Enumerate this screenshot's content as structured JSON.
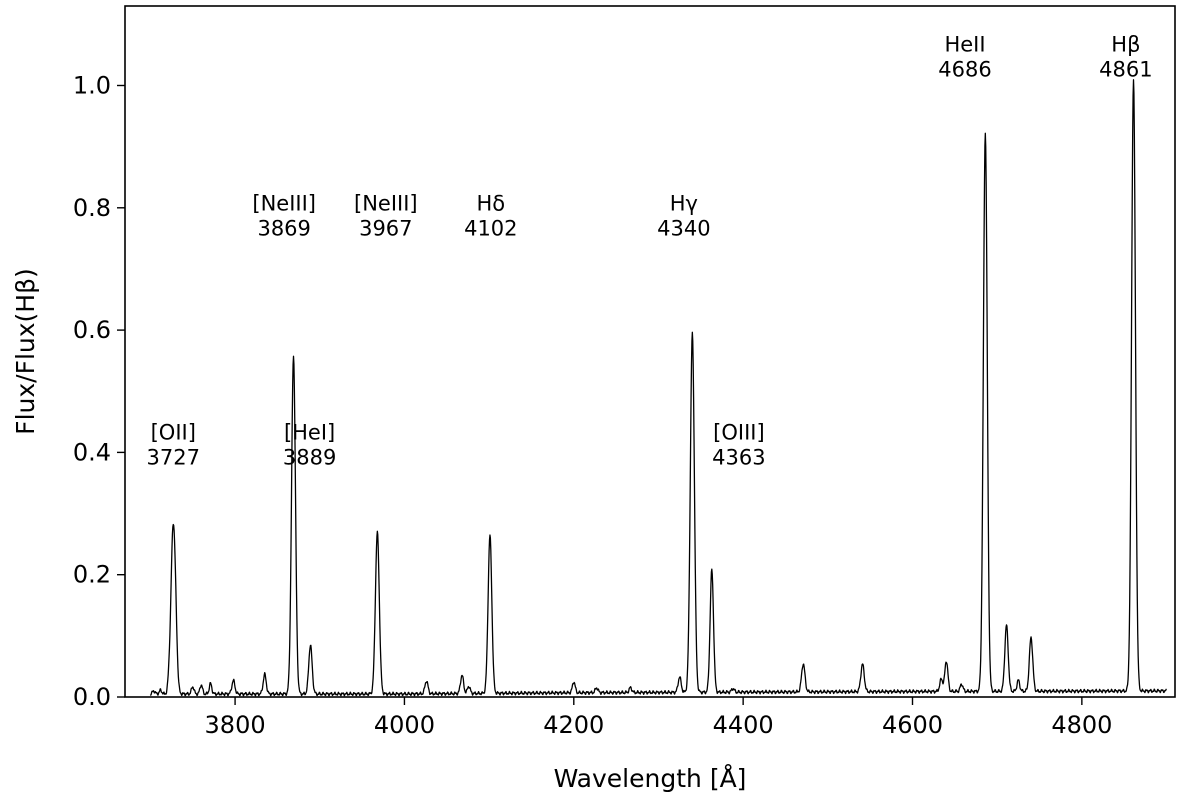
{
  "chart_data": {
    "type": "line",
    "xlabel": "Wavelength [Å]",
    "ylabel": "Flux/Flux(Hβ)",
    "xlim": [
      3670,
      4910
    ],
    "ylim": [
      0,
      1.13
    ],
    "xticks": [
      3800,
      4000,
      4200,
      4400,
      4600,
      4800
    ],
    "xtick_labels": [
      "3800",
      "4000",
      "4200",
      "4400",
      "4600",
      "4800"
    ],
    "yticks": [
      0,
      0.2,
      0.4,
      0.6,
      0.8,
      1.0
    ],
    "ytick_labels": [
      "0.0",
      "0.2",
      "0.4",
      "0.6",
      "0.8",
      "1.0"
    ],
    "line_color": "#000000",
    "grid": false,
    "legend": "none",
    "continuum": [
      [
        3700,
        0.005
      ],
      [
        4000,
        0.005
      ],
      [
        4200,
        0.007
      ],
      [
        4400,
        0.008
      ],
      [
        4600,
        0.009
      ],
      [
        4900,
        0.01
      ]
    ],
    "peaks": [
      {
        "x": 3704,
        "y": 0.005,
        "w": 1.5
      },
      {
        "x": 3712,
        "y": 0.006,
        "w": 1.5
      },
      {
        "x": 3722,
        "y": 0.02,
        "w": 1.5
      },
      {
        "x": 3726,
        "y": 0.2,
        "w": 2.2
      },
      {
        "x": 3729,
        "y": 0.15,
        "w": 2.2
      },
      {
        "x": 3750,
        "y": 0.012,
        "w": 1.5
      },
      {
        "x": 3760,
        "y": 0.015,
        "w": 1.5
      },
      {
        "x": 3771,
        "y": 0.017,
        "w": 1.5
      },
      {
        "x": 3798,
        "y": 0.022,
        "w": 1.8
      },
      {
        "x": 3835,
        "y": 0.032,
        "w": 1.8
      },
      {
        "x": 3869,
        "y": 0.553,
        "w": 2.3
      },
      {
        "x": 3889,
        "y": 0.08,
        "w": 2.0
      },
      {
        "x": 3968,
        "y": 0.264,
        "w": 2.3
      },
      {
        "x": 4026,
        "y": 0.021,
        "w": 1.8
      },
      {
        "x": 4068,
        "y": 0.03,
        "w": 1.8
      },
      {
        "x": 4076,
        "y": 0.012,
        "w": 1.6
      },
      {
        "x": 4101,
        "y": 0.258,
        "w": 2.2
      },
      {
        "x": 4200,
        "y": 0.018,
        "w": 1.6
      },
      {
        "x": 4227,
        "y": 0.008,
        "w": 1.6
      },
      {
        "x": 4267,
        "y": 0.008,
        "w": 1.6
      },
      {
        "x": 4325,
        "y": 0.025,
        "w": 1.8
      },
      {
        "x": 4340,
        "y": 0.586,
        "w": 2.4
      },
      {
        "x": 4363,
        "y": 0.2,
        "w": 2.0
      },
      {
        "x": 4388,
        "y": 0.006,
        "w": 1.6
      },
      {
        "x": 4471,
        "y": 0.046,
        "w": 2.0
      },
      {
        "x": 4541,
        "y": 0.045,
        "w": 2.0
      },
      {
        "x": 4634,
        "y": 0.02,
        "w": 1.8
      },
      {
        "x": 4640,
        "y": 0.05,
        "w": 1.8
      },
      {
        "x": 4658,
        "y": 0.012,
        "w": 1.6
      },
      {
        "x": 4686,
        "y": 0.914,
        "w": 2.3
      },
      {
        "x": 4711,
        "y": 0.108,
        "w": 2.0
      },
      {
        "x": 4725,
        "y": 0.018,
        "w": 1.6
      },
      {
        "x": 4740,
        "y": 0.088,
        "w": 2.0
      },
      {
        "x": 4861,
        "y": 1.0,
        "w": 2.3
      }
    ],
    "annotations": [
      {
        "name": "oii",
        "lines": [
          "[OII]",
          "3727"
        ],
        "x": 3727,
        "y": 0.38
      },
      {
        "name": "neiii-3869",
        "lines": [
          "[NeIII]",
          "3869"
        ],
        "x": 3858,
        "y": 0.755
      },
      {
        "name": "hei",
        "lines": [
          "[HeI]",
          "3889"
        ],
        "x": 3888,
        "y": 0.38
      },
      {
        "name": "neiii-3967",
        "lines": [
          "[NeIII]",
          "3967"
        ],
        "x": 3978,
        "y": 0.755
      },
      {
        "name": "hdelta",
        "lines": [
          "Hδ",
          "4102"
        ],
        "x": 4102,
        "y": 0.755
      },
      {
        "name": "hgamma",
        "lines": [
          "Hγ",
          "4340"
        ],
        "x": 4330,
        "y": 0.755
      },
      {
        "name": "oiii",
        "lines": [
          "[OIII]",
          "4363"
        ],
        "x": 4395,
        "y": 0.38
      },
      {
        "name": "heii",
        "lines": [
          "HeII",
          "4686"
        ],
        "x": 4662,
        "y": 1.015
      },
      {
        "name": "hbeta",
        "lines": [
          "Hβ",
          "4861"
        ],
        "x": 4852,
        "y": 1.015
      }
    ]
  }
}
